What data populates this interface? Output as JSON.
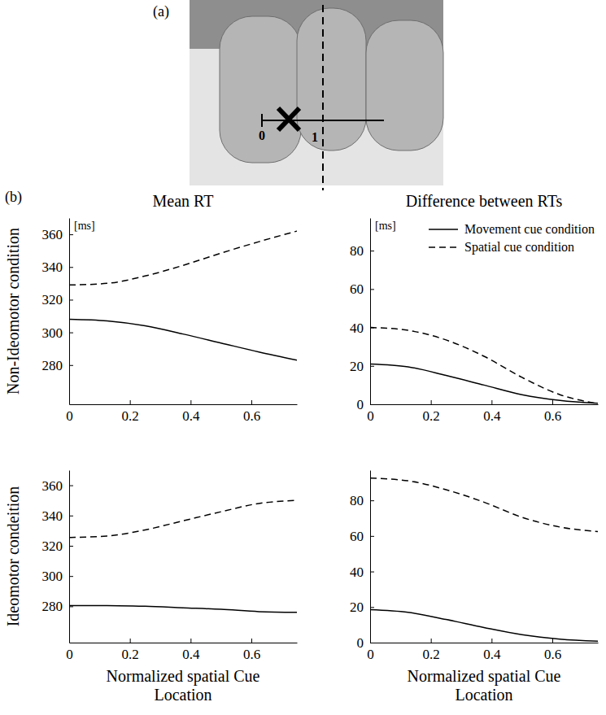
{
  "figure": {
    "panel_labels": [
      "(a)",
      "(b)"
    ],
    "photo_scale_labels": [
      "0",
      "1"
    ]
  },
  "chart_data": [
    {
      "type": "line",
      "title": "Mean RT",
      "ylabel": "Non-Ideomotor condition",
      "annotations": [
        {
          "text": "[ms]"
        }
      ],
      "x": [
        0,
        0.125,
        0.25,
        0.375,
        0.5,
        0.625,
        0.75
      ],
      "xlim": [
        0,
        0.75
      ],
      "xticks": [
        0,
        0.2,
        0.4,
        0.6
      ],
      "ylim": [
        256,
        370
      ],
      "yticks": [
        280,
        300,
        320,
        340,
        360
      ],
      "series": [
        {
          "color": "#000000",
          "line_style": "solid",
          "values": [
            308,
            307,
            304,
            299,
            293.5,
            288,
            283
          ]
        },
        {
          "color": "#000000",
          "line_style": "dashed",
          "values": [
            329,
            330,
            334.5,
            341,
            348.5,
            355.5,
            362
          ]
        }
      ]
    },
    {
      "type": "line",
      "title": "Difference between RTs",
      "annotations": [
        {
          "text": "[ms]"
        }
      ],
      "legend": "upper right",
      "x": [
        0,
        0.125,
        0.25,
        0.375,
        0.5,
        0.625,
        0.75
      ],
      "xlim": [
        0,
        0.75
      ],
      "xticks": [
        0,
        0.2,
        0.4,
        0.6
      ],
      "ylim": [
        0,
        97
      ],
      "yticks": [
        0,
        20,
        40,
        60,
        80
      ],
      "series": [
        {
          "name": "Movement cue condition",
          "color": "#000000",
          "line_style": "solid",
          "values": [
            21,
            19.5,
            15,
            10,
            5,
            2,
            0.5
          ]
        },
        {
          "name": "Spatial cue condition",
          "color": "#000000",
          "line_style": "dashed",
          "values": [
            40,
            38.5,
            33.5,
            25,
            14,
            5,
            0.3
          ]
        }
      ]
    },
    {
      "type": "line",
      "ylabel": "Ideomotor condeition",
      "xlabel": "Normalized spatial Cue Location",
      "x": [
        0,
        0.125,
        0.25,
        0.375,
        0.5,
        0.625,
        0.75
      ],
      "xlim": [
        0,
        0.75
      ],
      "xticks": [
        0,
        0.2,
        0.4,
        0.6
      ],
      "ylim": [
        256,
        370
      ],
      "yticks": [
        280,
        300,
        320,
        340,
        360
      ],
      "series": [
        {
          "color": "#000000",
          "line_style": "solid",
          "values": [
            280.5,
            280.5,
            280,
            279,
            278,
            276.5,
            276
          ]
        },
        {
          "color": "#000000",
          "line_style": "dashed",
          "values": [
            325.5,
            326.5,
            330.5,
            336.5,
            342.5,
            348,
            350
          ]
        }
      ]
    },
    {
      "type": "line",
      "xlabel": "Normalized spatial Cue Location",
      "x": [
        0,
        0.125,
        0.25,
        0.375,
        0.5,
        0.625,
        0.75
      ],
      "xlim": [
        0,
        0.75
      ],
      "xticks": [
        0,
        0.2,
        0.4,
        0.6
      ],
      "ylim": [
        0,
        97
      ],
      "yticks": [
        0,
        20,
        40,
        60,
        80
      ],
      "series": [
        {
          "color": "#000000",
          "line_style": "solid",
          "values": [
            18.5,
            17,
            13,
            8.5,
            4.5,
            2,
            0.8
          ]
        },
        {
          "color": "#000000",
          "line_style": "dashed",
          "values": [
            92.5,
            91,
            86,
            79,
            70.5,
            65,
            62.5
          ]
        }
      ]
    }
  ]
}
